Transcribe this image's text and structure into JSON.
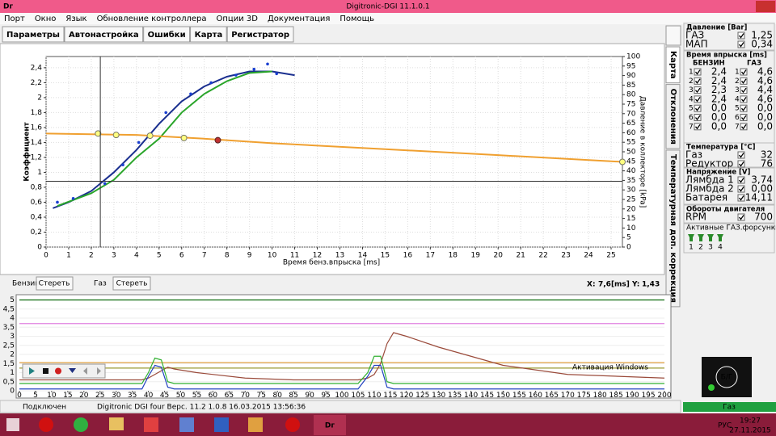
{
  "window": {
    "icon": "Dг",
    "title": "Digitronic-DGI  11.1.0.1"
  },
  "menu": [
    "Порт",
    "Окно",
    "Язык",
    "Обновление контроллера",
    "Опции 3D",
    "Документация",
    "Помощь"
  ],
  "tabs": [
    "Параметры",
    "Автонастройка",
    "Ошибки",
    "Карта",
    "Регистратор"
  ],
  "side_tabs": [
    "Карта",
    "Отклонения",
    "Температурная доп. коррекция"
  ],
  "main_chart": {
    "type": "line",
    "x_label": "Время бенз.впрыска [ms]",
    "y_label": "Коэффициент",
    "y2_label": "Давление в коллекторе [kPa]",
    "xlim": [
      0,
      25.5
    ],
    "ylim": [
      0,
      2.55
    ],
    "y2lim": [
      0,
      100
    ],
    "xticks": [
      0,
      1,
      2,
      3,
      4,
      5,
      6,
      7,
      8,
      9,
      10,
      11,
      12,
      13,
      14,
      15,
      16,
      17,
      18,
      19,
      20,
      21,
      22,
      23,
      24,
      25
    ],
    "yticks": [
      0,
      {
        "value": 0.2,
        "label": "0,2"
      },
      {
        "value": 0.4,
        "label": "0,4"
      },
      {
        "value": 0.6,
        "label": "0,6"
      },
      {
        "value": 0.8,
        "label": "0,8"
      },
      1,
      {
        "value": 1.2,
        "label": "1,2"
      },
      {
        "value": 1.4,
        "label": "1,4"
      },
      {
        "value": 1.6,
        "label": "1,6"
      },
      {
        "value": 1.8,
        "label": "1,8"
      },
      2,
      {
        "value": 2.2,
        "label": "2,2"
      },
      {
        "value": 2.4,
        "label": "2,4"
      }
    ],
    "y2ticks": [
      0,
      5,
      10,
      15,
      20,
      25,
      30,
      35,
      40,
      45,
      50,
      55,
      60,
      65,
      70,
      75,
      80,
      85,
      90,
      95,
      100
    ],
    "grid": true,
    "series": [
      {
        "name": "Бензин",
        "color": "#1a2f8f",
        "x": [
          0.3,
          1,
          2,
          3,
          4,
          5,
          6,
          7,
          8,
          9,
          10,
          11
        ],
        "values": [
          0.52,
          0.6,
          0.75,
          1.0,
          1.3,
          1.65,
          1.95,
          2.15,
          2.28,
          2.35,
          2.35,
          2.3
        ]
      },
      {
        "name": "Газ",
        "color": "#2aa52a",
        "x": [
          0.5,
          2,
          3,
          4,
          5,
          6,
          7,
          8,
          9,
          10
        ],
        "values": [
          0.55,
          0.72,
          0.9,
          1.2,
          1.45,
          1.8,
          2.05,
          2.22,
          2.33,
          2.35
        ]
      },
      {
        "color": "#f0a030",
        "x": [
          0,
          4,
          7,
          10,
          15,
          20,
          25.5
        ],
        "values": [
          1.52,
          1.5,
          1.45,
          1.39,
          1.31,
          1.23,
          1.14
        ]
      }
    ],
    "points": {
      "color": "#1a3fd0",
      "x": [
        0.5,
        1.2,
        2.6,
        3.4,
        4.1,
        5.3,
        6.4,
        7.3,
        8.4,
        9.2,
        9.8,
        10.2
      ],
      "values": [
        0.6,
        0.65,
        0.85,
        1.1,
        1.4,
        1.8,
        2.05,
        2.2,
        2.3,
        2.38,
        2.45,
        2.32
      ]
    },
    "markers": {
      "color": "#ffff80",
      "x": [
        2.3,
        3.1,
        4.6,
        6.1,
        25.5
      ],
      "values": [
        1.52,
        1.5,
        1.49,
        1.46,
        1.14
      ]
    },
    "selected": {
      "color": "#c03030",
      "x": 7.6,
      "y": 1.43
    },
    "cursor": {
      "x": 2.4,
      "y": 0.88
    }
  },
  "legend_bar": {
    "clear": "Стереть",
    "x_label": "X:",
    "x_value": "7,6[ms]",
    "y_label": "Y:",
    "y_value": "1,43"
  },
  "bottom_chart": {
    "type": "line",
    "xlim": [
      0,
      200
    ],
    "ylim": [
      0,
      5.2
    ],
    "xticks": [
      0,
      5,
      10,
      15,
      20,
      25,
      30,
      35,
      40,
      45,
      50,
      55,
      60,
      65,
      70,
      75,
      80,
      85,
      90,
      95,
      100,
      105,
      110,
      115,
      120,
      125,
      130,
      135,
      140,
      145,
      150,
      155,
      160,
      165,
      170,
      175,
      180,
      185,
      190,
      195,
      200
    ],
    "yticks": [
      0,
      {
        "value": 0.5,
        "label": "0,5"
      },
      1,
      {
        "value": 1.5,
        "label": "1,5"
      },
      2,
      {
        "value": 2.5,
        "label": "2,5"
      },
      3,
      {
        "value": 3.5,
        "label": "3,5"
      },
      4,
      {
        "value": 4.5,
        "label": "4,5"
      },
      5
    ],
    "series": [
      {
        "color": "#0a6a0a",
        "x": [
          0,
          200
        ],
        "values": [
          5.0,
          5.0
        ]
      },
      {
        "color": "#e080e0",
        "x": [
          0,
          200
        ],
        "values": [
          3.7,
          3.7
        ]
      },
      {
        "color": "#e0a040",
        "x": [
          0,
          200
        ],
        "values": [
          1.55,
          1.55
        ]
      },
      {
        "color": "#9a9a30",
        "x": [
          0,
          200
        ],
        "values": [
          1.25,
          1.25
        ]
      },
      {
        "color": "#9a4a3a",
        "x": [
          0,
          38,
          40,
          42,
          44,
          46,
          48,
          55,
          70,
          85,
          105,
          108,
          110,
          112,
          114,
          116,
          120,
          130,
          150,
          170,
          200
        ],
        "values": [
          0.6,
          0.6,
          0.7,
          0.9,
          1.1,
          1.3,
          1.2,
          1.0,
          0.7,
          0.6,
          0.6,
          0.7,
          0.9,
          1.5,
          2.6,
          3.2,
          3.0,
          2.4,
          1.4,
          0.9,
          0.7
        ]
      },
      {
        "color": "#30b030",
        "x": [
          0,
          38,
          40,
          42,
          44,
          46,
          48,
          55,
          70,
          85,
          105,
          108,
          110,
          112,
          114,
          116,
          120,
          130,
          150,
          170,
          200
        ],
        "values": [
          0.4,
          0.4,
          1.0,
          1.8,
          1.7,
          0.5,
          0.4,
          0.4,
          0.4,
          0.4,
          0.4,
          1.0,
          1.9,
          1.9,
          0.5,
          0.4,
          0.4,
          0.4,
          0.4,
          0.4,
          0.4
        ]
      },
      {
        "color": "#2040c0",
        "x": [
          0,
          38,
          40,
          42,
          44,
          46,
          48,
          55,
          70,
          85,
          105,
          108,
          110,
          112,
          114,
          116,
          120,
          130,
          150,
          170,
          200
        ],
        "values": [
          0.1,
          0.1,
          0.8,
          1.4,
          1.3,
          0.2,
          0.1,
          0.1,
          0.1,
          0.1,
          0.1,
          0.8,
          1.4,
          1.4,
          0.2,
          0.1,
          0.1,
          0.1,
          0.1,
          0.1,
          0.1
        ]
      }
    ]
  },
  "panel": {
    "pressure": {
      "title": "Давление [Bar]",
      "rows": [
        {
          "label": "ГАЗ",
          "value": "1,25",
          "color": "#30a030"
        },
        {
          "label": "МАП",
          "value": "0,34",
          "color": "#30a030"
        }
      ]
    },
    "injection": {
      "title": "Время впрыска [ms]",
      "petrol": "БЕНЗИН",
      "gas": "ГАЗ",
      "rows": [
        [
          "1",
          "2,4",
          "1",
          "4,6"
        ],
        [
          "2",
          "2,4",
          "2",
          "4,6"
        ],
        [
          "3",
          "2,3",
          "3",
          "4,4"
        ],
        [
          "4",
          "2,4",
          "4",
          "4,6"
        ],
        [
          "5",
          "0,0",
          "5",
          "0,0"
        ],
        [
          "6",
          "0,0",
          "6",
          "0,0"
        ],
        [
          "7",
          "0,0",
          "7",
          "0,0"
        ]
      ]
    },
    "temperature": {
      "title": "Температура [°C]",
      "rows": [
        {
          "label": "Газ",
          "value": "32",
          "color": "#d03030"
        },
        {
          "label": "Редуктор",
          "value": "76",
          "color": "#e08030"
        }
      ]
    },
    "voltage": {
      "title": "Напряжение [V]",
      "rows": [
        {
          "label": "Лямбда 1",
          "value": "3,74",
          "color": "#d040d0"
        },
        {
          "label": "Лямбда 2",
          "value": "0,00",
          "color": "#d040d0"
        },
        {
          "label": "Батарея",
          "value": "14,11",
          "color": "#909020"
        }
      ]
    },
    "rpm": {
      "title": "Обороты двигателя",
      "rows": [
        {
          "label": "RPM",
          "value": "700",
          "color": "#d03030"
        }
      ]
    },
    "injectors": {
      "title": "Активные ГАЗ.форсунки",
      "labels": [
        "1",
        "2",
        "3",
        "4"
      ]
    },
    "gauge": "Б/Г",
    "mode": "Газ"
  },
  "status": {
    "connection": "Подключен",
    "version": "Digitronic DGI four   Верс. 11.2  1.0.8    16.03.2015 13:56:36"
  },
  "taskbar": {
    "lang": "РУС",
    "time": "19:27",
    "date": "27.11.2015",
    "watermark": "Активация Windows"
  }
}
